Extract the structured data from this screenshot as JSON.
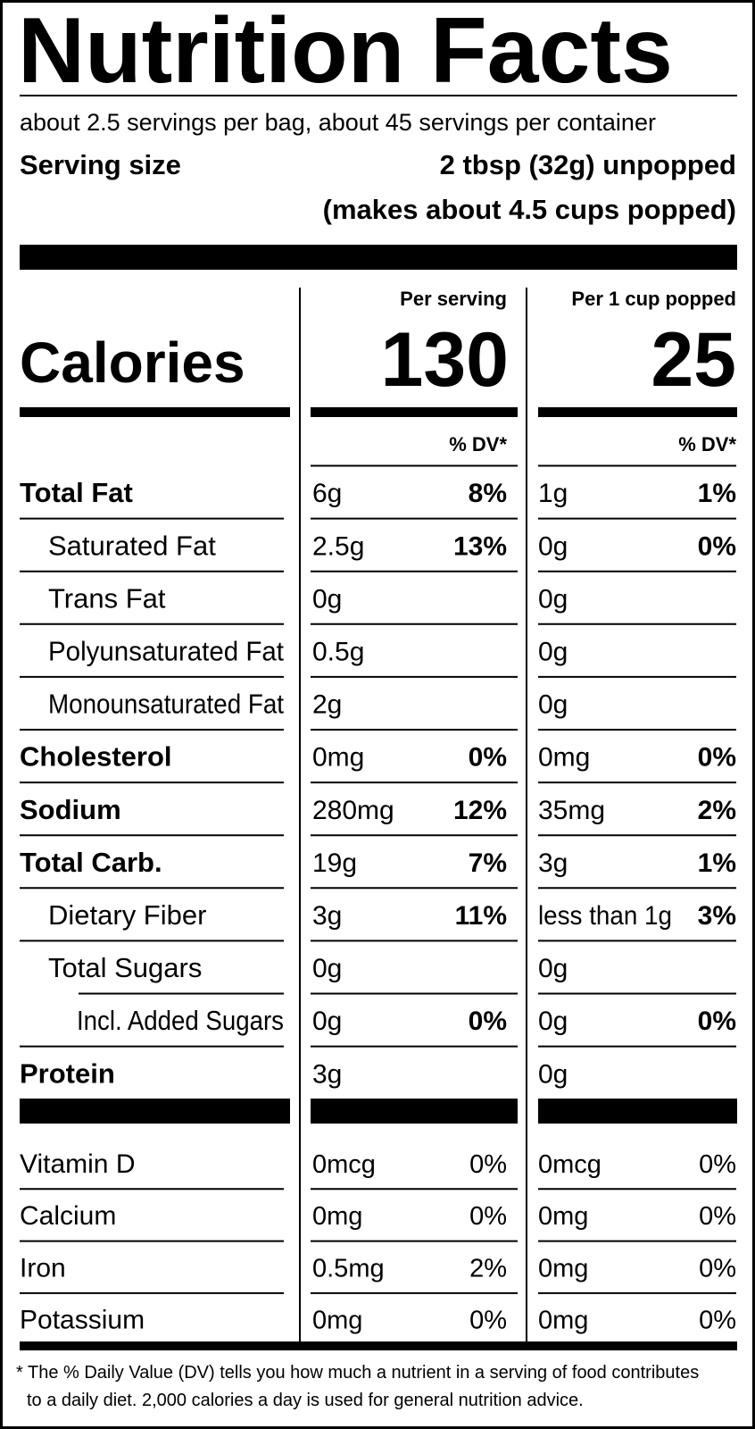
{
  "title": "Nutrition Facts",
  "servings": "about 2.5 servings per bag, about 45 servings per container",
  "serving_size": {
    "label": "Serving size",
    "value": "2 tbsp (32g) unpopped",
    "note": "(makes about 4.5 cups popped)"
  },
  "calories": {
    "label": "Calories",
    "per_serving": {
      "header": "Per serving",
      "value": 130
    },
    "per_cup": {
      "header": "Per 1 cup popped",
      "value": 25
    }
  },
  "dv_header": {
    "per_serving": "% DV*",
    "per_cup": "% DV*"
  },
  "nutrients": [
    {
      "name": "Total Fat",
      "per_serving": {
        "amount": "6g",
        "dv": "8%"
      },
      "per_cup": {
        "amount": "1g",
        "dv": "1%"
      }
    },
    {
      "name": "Saturated Fat",
      "per_serving": {
        "amount": "2.5g",
        "dv": "13%"
      },
      "per_cup": {
        "amount": "0g",
        "dv": "0%"
      }
    },
    {
      "name": "Trans Fat",
      "per_serving": {
        "amount": "0g"
      },
      "per_cup": {
        "amount": "0g"
      }
    },
    {
      "name": "Polyunsaturated Fat",
      "per_serving": {
        "amount": "0.5g"
      },
      "per_cup": {
        "amount": "0g"
      }
    },
    {
      "name": "Monounsaturated Fat",
      "per_serving": {
        "amount": "2g"
      },
      "per_cup": {
        "amount": "0g"
      }
    },
    {
      "name": "Cholesterol",
      "per_serving": {
        "amount": "0mg",
        "dv": "0%"
      },
      "per_cup": {
        "amount": "0mg",
        "dv": "0%"
      }
    },
    {
      "name": "Sodium",
      "per_serving": {
        "amount": "280mg",
        "dv": "12%"
      },
      "per_cup": {
        "amount": "35mg",
        "dv": "2%"
      }
    },
    {
      "name": "Total Carb.",
      "per_serving": {
        "amount": "19g",
        "dv": "7%"
      },
      "per_cup": {
        "amount": "3g",
        "dv": "1%"
      }
    },
    {
      "name": "Dietary Fiber",
      "per_serving": {
        "amount": "3g",
        "dv": "11%"
      },
      "per_cup": {
        "amount": "less than 1g",
        "dv": "3%"
      }
    },
    {
      "name": "Total Sugars",
      "per_serving": {
        "amount": "0g"
      },
      "per_cup": {
        "amount": "0g"
      }
    },
    {
      "name": "Incl. Added Sugars",
      "per_serving": {
        "amount": "0g",
        "dv": "0%"
      },
      "per_cup": {
        "amount": "0g",
        "dv": "0%"
      }
    },
    {
      "name": "Protein",
      "per_serving": {
        "amount": "3g"
      },
      "per_cup": {
        "amount": "0g"
      }
    }
  ],
  "vitamins": [
    {
      "name": "Vitamin D",
      "per_serving": {
        "amount": "0mcg",
        "dv": "0%"
      },
      "per_cup": {
        "amount": "0mcg",
        "dv": "0%"
      }
    },
    {
      "name": "Calcium",
      "per_serving": {
        "amount": "0mg",
        "dv": "0%"
      },
      "per_cup": {
        "amount": "0mg",
        "dv": "0%"
      }
    },
    {
      "name": "Iron",
      "per_serving": {
        "amount": "0.5mg",
        "dv": "2%"
      },
      "per_cup": {
        "amount": "0mg",
        "dv": "0%"
      }
    },
    {
      "name": "Potassium",
      "per_serving": {
        "amount": "0mg",
        "dv": "0%"
      },
      "per_cup": {
        "amount": "0mg",
        "dv": "0%"
      }
    }
  ],
  "footnote": [
    "* The % Daily Value (DV) tells you how much a nutrient in a serving of food contributes",
    "to a daily diet. 2,000 calories a day is used for general nutrition advice."
  ]
}
